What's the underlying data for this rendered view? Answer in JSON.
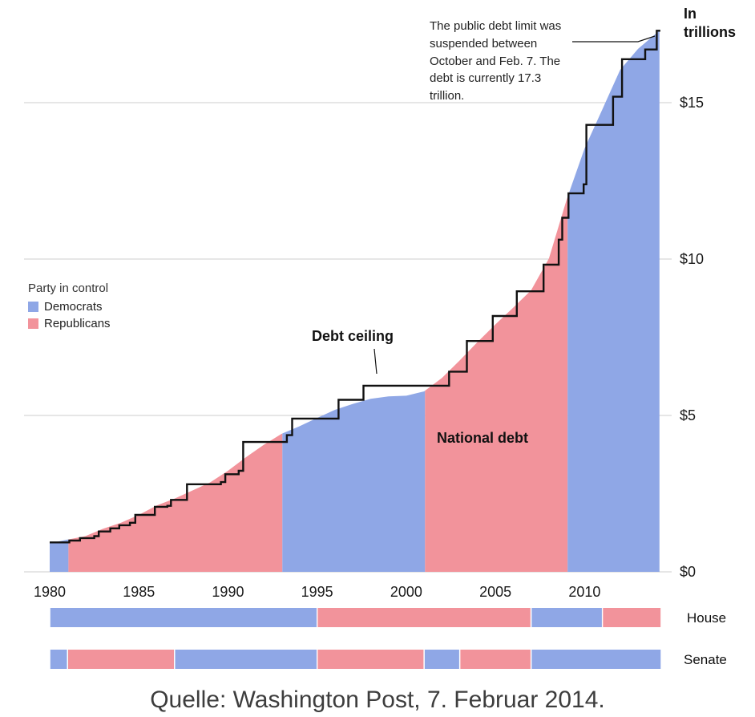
{
  "colors": {
    "democrats": "#8fa7e6",
    "republicans": "#f2939b",
    "ceiling_line": "#111111",
    "grid": "#cccccc",
    "text": "#1a1a1a"
  },
  "labels": {
    "y_axis_title": "In\ntrillions",
    "annotation": "The public debt limit was suspended between October and Feb. 7. The debt is currently 17.3 trillion.",
    "debt_ceiling": "Debt ceiling",
    "national_debt": "National debt",
    "house": "House",
    "senate": "Senate",
    "caption": "Quelle: Washington Post, 7. Februar 2014."
  },
  "legend": {
    "title": "Party in control",
    "items": [
      {
        "label": "Democrats",
        "color": "#8fa7e6"
      },
      {
        "label": "Republicans",
        "color": "#f2939b"
      }
    ]
  },
  "chart_data": {
    "type": "area",
    "title": "",
    "ylabel": "In trillions",
    "ylim": [
      0,
      17.5
    ],
    "yticks": [
      0,
      5,
      10,
      15
    ],
    "ytick_labels": [
      "$0",
      "$5",
      "$10",
      "$15"
    ],
    "xlim": [
      1980,
      2014.3
    ],
    "xticks": [
      1980,
      1985,
      1990,
      1995,
      2000,
      2005,
      2010
    ],
    "grid": true,
    "legend_position": "left",
    "national_debt": {
      "x": [
        1980,
        1981,
        1982,
        1983,
        1984,
        1985,
        1986,
        1987,
        1988,
        1989,
        1990,
        1991,
        1992,
        1993,
        1994,
        1995,
        1996,
        1997,
        1998,
        1999,
        2000,
        2001,
        2002,
        2003,
        2004,
        2005,
        2006,
        2007,
        2008,
        2009,
        2010,
        2011,
        2012,
        2013,
        2014.2
      ],
      "values": [
        0.91,
        1.03,
        1.14,
        1.38,
        1.57,
        1.82,
        2.12,
        2.34,
        2.6,
        2.86,
        3.23,
        3.66,
        4.06,
        4.41,
        4.65,
        4.92,
        5.18,
        5.37,
        5.53,
        5.61,
        5.63,
        5.77,
        6.2,
        6.76,
        7.35,
        7.91,
        8.45,
        9.0,
        10.02,
        11.91,
        13.53,
        14.79,
        16.05,
        16.72,
        17.3
      ]
    },
    "debt_ceiling_steps": [
      {
        "x": 1980.0,
        "value": 0.94
      },
      {
        "x": 1981.1,
        "value": 1.0
      },
      {
        "x": 1981.7,
        "value": 1.08
      },
      {
        "x": 1982.5,
        "value": 1.14
      },
      {
        "x": 1982.75,
        "value": 1.29
      },
      {
        "x": 1983.4,
        "value": 1.39
      },
      {
        "x": 1983.9,
        "value": 1.49
      },
      {
        "x": 1984.5,
        "value": 1.57
      },
      {
        "x": 1984.8,
        "value": 1.82
      },
      {
        "x": 1985.9,
        "value": 2.08
      },
      {
        "x": 1986.6,
        "value": 2.11
      },
      {
        "x": 1986.8,
        "value": 2.3
      },
      {
        "x": 1987.7,
        "value": 2.8
      },
      {
        "x": 1989.6,
        "value": 2.87
      },
      {
        "x": 1989.85,
        "value": 3.12
      },
      {
        "x": 1990.6,
        "value": 3.23
      },
      {
        "x": 1990.85,
        "value": 4.15
      },
      {
        "x": 1993.3,
        "value": 4.37
      },
      {
        "x": 1993.6,
        "value": 4.9
      },
      {
        "x": 1996.2,
        "value": 5.5
      },
      {
        "x": 1997.6,
        "value": 5.95
      },
      {
        "x": 2002.4,
        "value": 6.4
      },
      {
        "x": 2003.4,
        "value": 7.38
      },
      {
        "x": 2004.85,
        "value": 8.18
      },
      {
        "x": 2006.2,
        "value": 8.97
      },
      {
        "x": 2007.7,
        "value": 9.82
      },
      {
        "x": 2008.55,
        "value": 10.62
      },
      {
        "x": 2008.75,
        "value": 11.32
      },
      {
        "x": 2009.1,
        "value": 12.1
      },
      {
        "x": 2009.95,
        "value": 12.39
      },
      {
        "x": 2010.1,
        "value": 14.29
      },
      {
        "x": 2011.6,
        "value": 15.19
      },
      {
        "x": 2012.1,
        "value": 16.39
      },
      {
        "x": 2013.4,
        "value": 16.7
      },
      {
        "x": 2014.05,
        "value": 17.3
      }
    ],
    "party_in_control_segments": [
      {
        "party": "Democrats",
        "start": 1980,
        "end": 1981.05
      },
      {
        "party": "Republicans",
        "start": 1981.05,
        "end": 1993.05
      },
      {
        "party": "Democrats",
        "start": 1993.05,
        "end": 2001.05
      },
      {
        "party": "Republicans",
        "start": 2001.05,
        "end": 2009.05
      },
      {
        "party": "Democrats",
        "start": 2009.05,
        "end": 2014.2
      }
    ],
    "house_segments": [
      {
        "party": "Democrats",
        "start": 1980,
        "end": 1995
      },
      {
        "party": "Republicans",
        "start": 1995,
        "end": 2007
      },
      {
        "party": "Democrats",
        "start": 2007,
        "end": 2011
      },
      {
        "party": "Republicans",
        "start": 2011,
        "end": 2014.3
      }
    ],
    "senate_segments": [
      {
        "party": "Democrats",
        "start": 1980,
        "end": 1981
      },
      {
        "party": "Republicans",
        "start": 1981,
        "end": 1987
      },
      {
        "party": "Democrats",
        "start": 1987,
        "end": 1995
      },
      {
        "party": "Republicans",
        "start": 1995,
        "end": 2001
      },
      {
        "party": "Democrats",
        "start": 2001,
        "end": 2003
      },
      {
        "party": "Republicans",
        "start": 2003,
        "end": 2007
      },
      {
        "party": "Democrats",
        "start": 2007,
        "end": 2014.3
      }
    ]
  }
}
